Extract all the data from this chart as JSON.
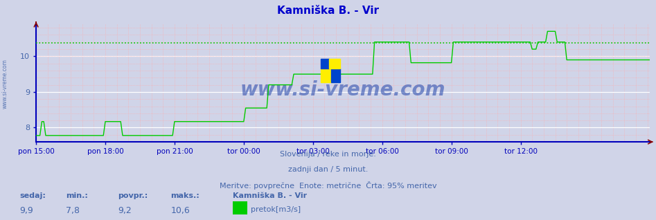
{
  "title": "Kamniška B. - Vir",
  "title_color": "#0000cc",
  "bg_color": "#d0d4e8",
  "plot_bg_color": "#d0d4e8",
  "line_color": "#00cc00",
  "axis_color": "#0000bb",
  "text_color": "#4466aa",
  "dotted_line_value": 10.38,
  "dotted_line_color": "#00cc00",
  "watermark": "www.si-vreme.com",
  "watermark_color": "#2244aa",
  "subtitle1": "Slovenija / reke in morje.",
  "subtitle2": "zadnji dan / 5 minut.",
  "subtitle3": "Meritve: povprečne  Enote: metrične  Črta: 95% meritev",
  "footer_label1": "sedaj:",
  "footer_label2": "min.:",
  "footer_label3": "povpr.:",
  "footer_label4": "maks.:",
  "footer_val1": "9,9",
  "footer_val2": "7,8",
  "footer_val3": "9,2",
  "footer_val4": "10,6",
  "footer_station": "Kamniška B. - Vir",
  "footer_series": "pretok[m3/s]",
  "x_ticks": [
    "pon 15:00",
    "pon 18:00",
    "pon 21:00",
    "tor 00:00",
    "tor 03:00",
    "tor 06:00",
    "tor 09:00",
    "tor 12:00"
  ],
  "x_tick_positions": [
    0,
    36,
    72,
    108,
    144,
    180,
    216,
    252
  ],
  "ylim": [
    7.6,
    10.9
  ],
  "yticks": [
    8,
    9,
    10
  ],
  "total_points": 288,
  "flow_data": [
    7.78,
    7.78,
    7.78,
    8.17,
    8.17,
    7.78,
    7.78,
    7.78,
    7.78,
    7.78,
    7.78,
    7.78,
    7.78,
    7.78,
    7.78,
    7.78,
    7.78,
    7.78,
    7.78,
    7.78,
    7.78,
    7.78,
    7.78,
    7.78,
    7.78,
    7.78,
    7.78,
    7.78,
    7.78,
    7.78,
    7.78,
    7.78,
    7.78,
    7.78,
    7.78,
    7.78,
    8.17,
    8.17,
    8.17,
    8.17,
    8.17,
    8.17,
    8.17,
    8.17,
    8.17,
    7.78,
    7.78,
    7.78,
    7.78,
    7.78,
    7.78,
    7.78,
    7.78,
    7.78,
    7.78,
    7.78,
    7.78,
    7.78,
    7.78,
    7.78,
    7.78,
    7.78,
    7.78,
    7.78,
    7.78,
    7.78,
    7.78,
    7.78,
    7.78,
    7.78,
    7.78,
    7.78,
    8.17,
    8.17,
    8.17,
    8.17,
    8.17,
    8.17,
    8.17,
    8.17,
    8.17,
    8.17,
    8.17,
    8.17,
    8.17,
    8.17,
    8.17,
    8.17,
    8.17,
    8.17,
    8.17,
    8.17,
    8.17,
    8.17,
    8.17,
    8.17,
    8.17,
    8.17,
    8.17,
    8.17,
    8.17,
    8.17,
    8.17,
    8.17,
    8.17,
    8.17,
    8.17,
    8.17,
    8.17,
    8.55,
    8.55,
    8.55,
    8.55,
    8.55,
    8.55,
    8.55,
    8.55,
    8.55,
    8.55,
    8.55,
    8.55,
    9.2,
    9.2,
    9.2,
    9.2,
    9.2,
    9.2,
    9.2,
    9.2,
    9.2,
    9.2,
    9.2,
    9.2,
    9.2,
    9.5,
    9.5,
    9.5,
    9.5,
    9.5,
    9.5,
    9.5,
    9.5,
    9.5,
    9.5,
    9.5,
    9.5,
    9.5,
    9.5,
    9.5,
    9.5,
    9.5,
    9.5,
    9.5,
    9.5,
    9.5,
    9.5,
    9.5,
    9.5,
    9.5,
    9.5,
    9.5,
    9.5,
    9.5,
    9.5,
    9.5,
    9.5,
    9.5,
    9.5,
    9.5,
    9.5,
    9.5,
    9.5,
    9.5,
    9.5,
    9.5,
    9.5,
    10.4,
    10.4,
    10.4,
    10.4,
    10.4,
    10.4,
    10.4,
    10.4,
    10.4,
    10.4,
    10.4,
    10.4,
    10.4,
    10.4,
    10.4,
    10.4,
    10.4,
    10.4,
    10.4,
    9.82,
    9.82,
    9.82,
    9.82,
    9.82,
    9.82,
    9.82,
    9.82,
    9.82,
    9.82,
    9.82,
    9.82,
    9.82,
    9.82,
    9.82,
    9.82,
    9.82,
    9.82,
    9.82,
    9.82,
    9.82,
    9.82,
    10.4,
    10.4,
    10.4,
    10.4,
    10.4,
    10.4,
    10.4,
    10.4,
    10.4,
    10.4,
    10.4,
    10.4,
    10.4,
    10.4,
    10.4,
    10.4,
    10.4,
    10.4,
    10.4,
    10.4,
    10.4,
    10.4,
    10.4,
    10.4,
    10.4,
    10.4,
    10.4,
    10.4,
    10.4,
    10.4,
    10.4,
    10.4,
    10.4,
    10.4,
    10.4,
    10.4,
    10.4,
    10.4,
    10.4,
    10.4,
    10.4,
    10.2,
    10.2,
    10.2,
    10.4,
    10.4,
    10.4,
    10.4,
    10.4,
    10.7,
    10.7,
    10.7,
    10.7,
    10.7,
    10.4,
    10.4,
    10.4,
    10.4,
    10.4,
    9.9,
    9.9,
    9.9,
    9.9,
    9.9,
    9.9,
    9.9,
    9.9,
    9.9,
    9.9,
    9.9,
    9.9,
    9.9,
    9.9,
    9.9,
    9.9,
    9.9,
    9.9,
    9.9,
    9.9,
    9.9,
    9.9,
    9.9,
    9.9,
    9.9,
    9.9,
    9.9,
    9.9,
    9.9,
    9.9,
    9.9,
    9.9,
    9.9,
    9.9,
    9.9,
    9.9,
    9.9,
    9.9,
    9.9,
    9.9,
    9.9,
    9.9,
    9.9,
    9.9
  ]
}
